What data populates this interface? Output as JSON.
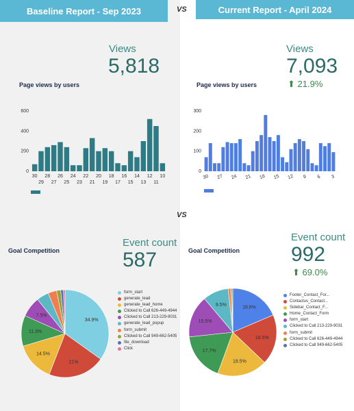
{
  "left": {
    "banner": "Baseline Report - Sep 2023",
    "views_label": "Views",
    "views_value": "5,818",
    "bar_title": "Page views by users",
    "goal_title": "Goal Competition",
    "event_label": "Event count",
    "event_value": "587"
  },
  "right": {
    "banner": "Current Report - April 2024",
    "views_label": "Views",
    "views_value": "7,093",
    "views_delta": "21.9%",
    "bar_title": "Page views by users",
    "goal_title": "Goal Competition",
    "event_label": "Event count",
    "event_value": "992",
    "event_delta": "69.0%"
  },
  "vs_label": "VS",
  "colors": {
    "banner": "#5bb8d4",
    "left_bar": "#2f7b85",
    "right_bar": "#4f7ee0",
    "delta": "#3c8a4a"
  },
  "chart_data": [
    {
      "type": "bar",
      "name": "Page views by users (Sep 2023)",
      "categories": [
        "30",
        "29",
        "28",
        "27",
        "26",
        "25",
        "24",
        "23",
        "22",
        "21",
        "20",
        "19",
        "18",
        "17",
        "16",
        "15",
        "14",
        "13",
        "12",
        "11",
        "10"
      ],
      "top_tick_labels": [
        "30",
        "28",
        "26",
        "24",
        "22",
        "20",
        "18",
        "16",
        "14",
        "12",
        "10"
      ],
      "bottom_tick_labels": [
        "29",
        "27",
        "25",
        "23",
        "21",
        "19",
        "17",
        "15",
        "13",
        "11"
      ],
      "values": [
        70,
        200,
        240,
        260,
        290,
        240,
        60,
        60,
        230,
        330,
        200,
        230,
        200,
        80,
        60,
        200,
        140,
        300,
        520,
        450,
        80
      ],
      "ylim": [
        0,
        600
      ],
      "yticks": [
        0,
        200,
        400,
        600
      ]
    },
    {
      "type": "bar",
      "name": "Page views by users (April 2024)",
      "tick_labels": [
        "30",
        "27",
        "24",
        "21",
        "18",
        "15",
        "12",
        "9",
        "6",
        "3"
      ],
      "values": [
        70,
        140,
        40,
        40,
        120,
        145,
        140,
        140,
        160,
        40,
        30,
        100,
        150,
        180,
        280,
        170,
        150,
        180,
        70,
        45,
        110,
        140,
        160,
        150,
        110,
        40,
        30,
        140,
        125,
        140,
        95
      ],
      "ylim": [
        0,
        300
      ],
      "yticks": [
        0,
        100,
        200,
        300
      ]
    },
    {
      "type": "pie",
      "name": "Goal Competition (Sep 2023)",
      "labels": [
        "form_start",
        "generate_lead",
        "generate_lead_home",
        "Clicked to Call 626-449-4944",
        "Clicked to Call 213-229-9031",
        "generate_lead_popup",
        "form_submit",
        "Clicked to Call 949-662-5405",
        "file_download",
        "Click"
      ],
      "values": [
        34.9,
        21,
        14.5,
        11.3,
        7.5,
        4.5,
        3.2,
        1.5,
        1,
        0.6
      ],
      "slice_labels": [
        "34.9%",
        "21%",
        "14.5%",
        "11.3%",
        "7.5%",
        "",
        "",
        "",
        "",
        ""
      ],
      "colors": [
        "#7ecfe1",
        "#d04a3a",
        "#edb93d",
        "#3e9a55",
        "#9d4db5",
        "#5bb8c4",
        "#ef7f50",
        "#9aa03a",
        "#5a6fb5",
        "#e2759b"
      ]
    },
    {
      "type": "pie",
      "name": "Goal Competition (April 2024)",
      "labels": [
        "Footer_Contact_For...",
        "Contactus_Contact...",
        "Sidebar_Contact_F...",
        "Home_Contact_Form",
        "form_start",
        "Clicked to Call 213-229-9031",
        "form_submit",
        "Clicked to Call 626-449-4944",
        "Clicked to Call 949-662-5405"
      ],
      "values": [
        18.6,
        18.5,
        18.5,
        17.7,
        15.5,
        9.5,
        0.9,
        0.5,
        0.3
      ],
      "slice_labels": [
        "18.6%",
        "18.5%",
        "18.5%",
        "17.7%",
        "15.5%",
        "9.5%",
        "",
        "",
        ""
      ],
      "colors": [
        "#4f82e8",
        "#d04a3a",
        "#edb93d",
        "#3e9a55",
        "#9d4db5",
        "#5bb8c4",
        "#ef7f50",
        "#9aa03a",
        "#5a6fb5"
      ]
    }
  ]
}
